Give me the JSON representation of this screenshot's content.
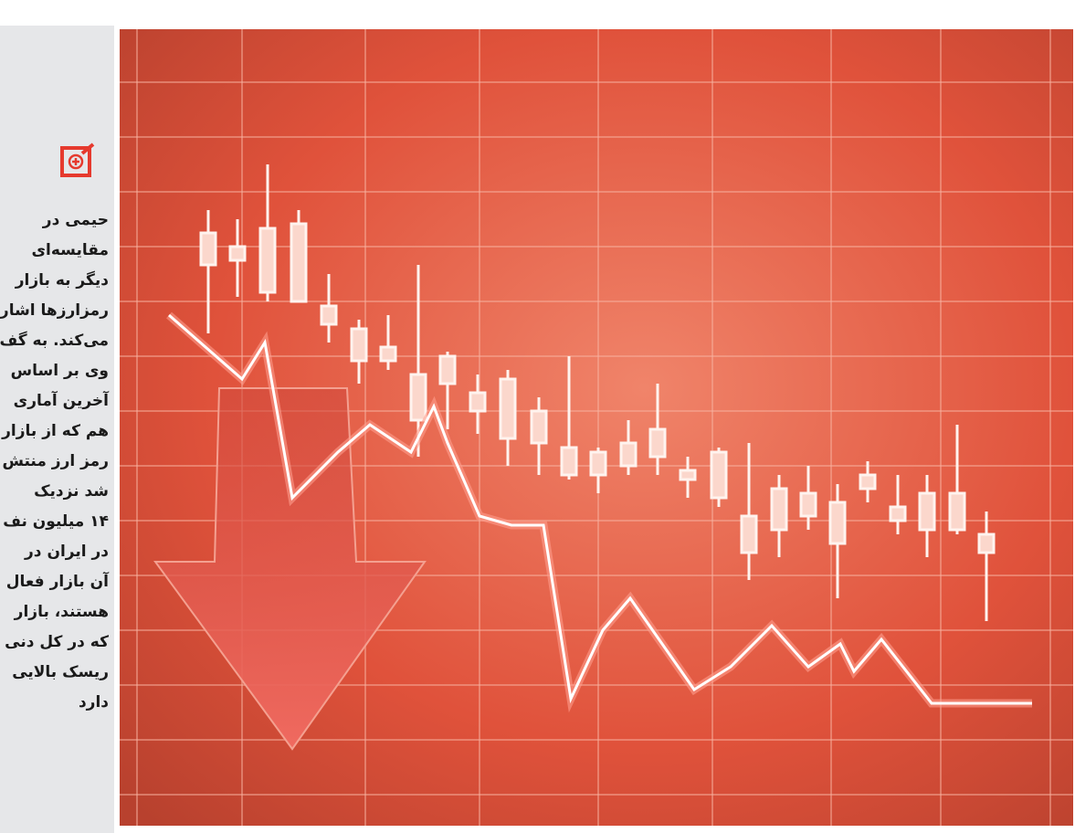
{
  "sidebar": {
    "lines": [
      "حیمی در",
      "مقایسه‌ای",
      "دیگر به بازار",
      "رمزارزها اشار",
      "می‌کند. به گف",
      "وی بر اساس",
      "آخرین آماری",
      "هم که از بازار",
      "رمز ارز منتش",
      "شد نزدیک",
      "۱۴ میلیون نف",
      "در ایران در",
      "آن بازار فعال",
      "هستند، بازار",
      "که در کل دنی",
      "ریسک بالایی",
      "دارد"
    ]
  }
}
